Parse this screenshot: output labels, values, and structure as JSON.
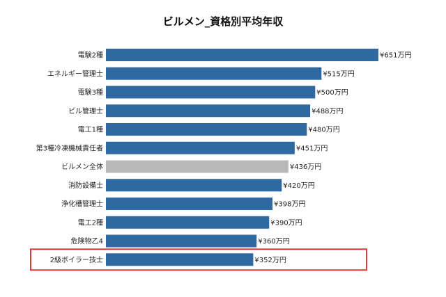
{
  "chart_data": {
    "type": "bar",
    "orientation": "horizontal",
    "title": "ビルメン_資格別平均年収",
    "xlabel": "",
    "ylabel": "",
    "xlim": [
      0,
      651
    ],
    "grid": false,
    "categories": [
      "電験2種",
      "エネルギー管理士",
      "電験3種",
      "ビル管理士",
      "電工1種",
      "第3種冷凍機械責任者",
      "ビルメン全体",
      "消防設備士",
      "浄化槽管理士",
      "電工2種",
      "危険物乙4",
      "2級ボイラー技士"
    ],
    "values": [
      651,
      515,
      500,
      488,
      480,
      451,
      436,
      420,
      398,
      390,
      360,
      352
    ],
    "value_labels": [
      "¥651万円",
      "¥515万円",
      "¥500万円",
      "¥488万円",
      "¥480万円",
      "¥451万円",
      "¥436万円",
      "¥420万円",
      "¥398万円",
      "¥390万円",
      "¥360万円",
      "¥352万円"
    ],
    "bar_colors": [
      "#2e6aa1",
      "#2e6aa1",
      "#2e6aa1",
      "#2e6aa1",
      "#2e6aa1",
      "#2e6aa1",
      "#b9b9b9",
      "#2e6aa1",
      "#2e6aa1",
      "#2e6aa1",
      "#2e6aa1",
      "#2e6aa1"
    ],
    "highlighted_category": "2級ボイラー技士",
    "highlight_color": "#e03a3a"
  }
}
